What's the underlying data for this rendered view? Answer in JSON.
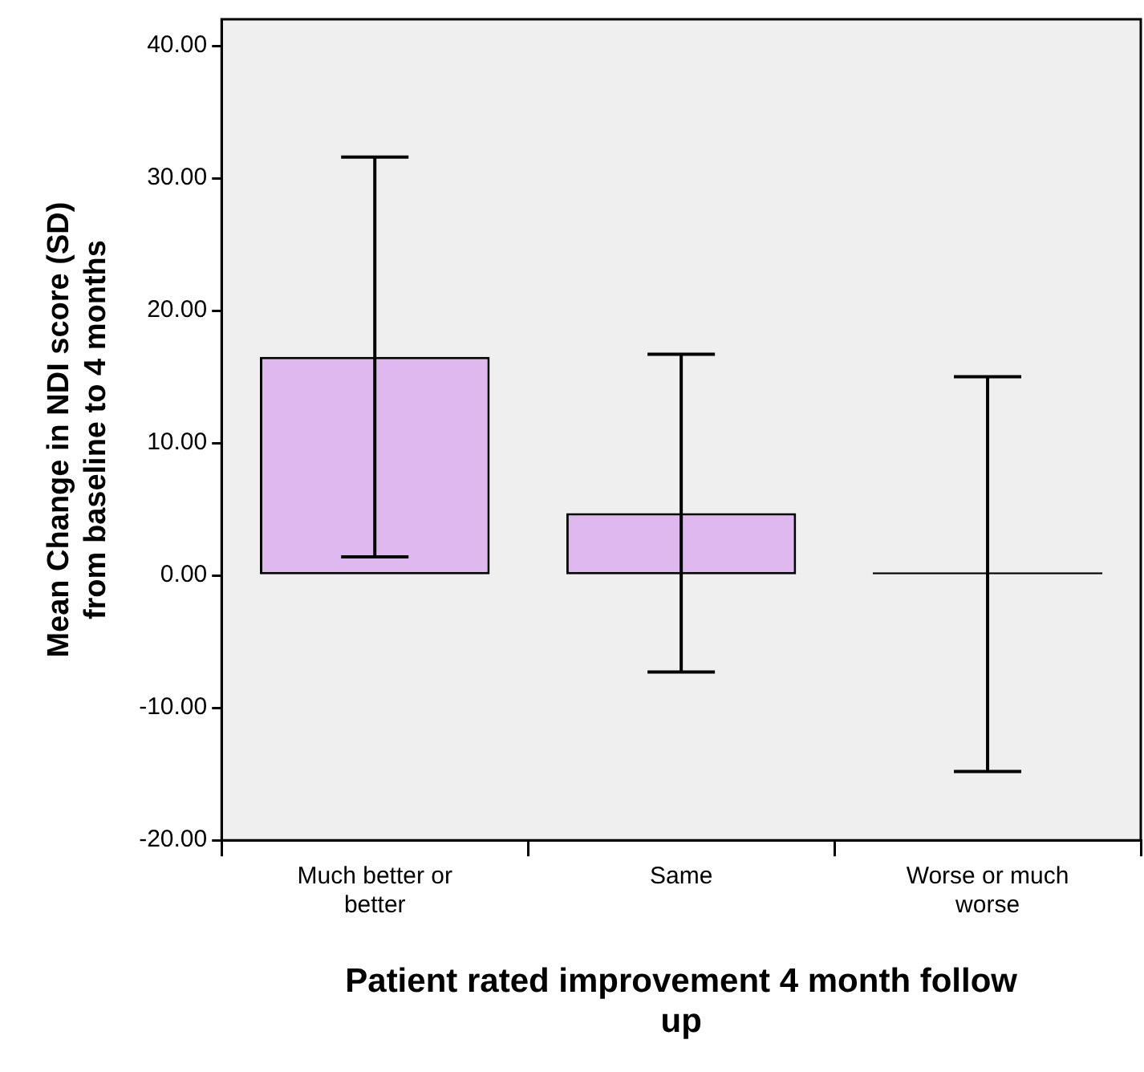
{
  "chart_data": {
    "type": "bar",
    "xlabel": "Patient rated improvement 4 month follow up",
    "ylabel": "Mean Change in NDI score (SD) from baseline to 4 months",
    "categories": [
      "Much better or better",
      "Same",
      "Worse or much worse"
    ],
    "values": [
      16.5,
      4.7,
      0.1
    ],
    "errors": [
      15.1,
      12.0,
      14.9
    ],
    "colors": [
      "#dfb8f0",
      "#dfb8f0",
      "#000000"
    ],
    "ylim": [
      -20,
      42
    ],
    "yticks": [
      {
        "value": -20,
        "label": "-20.00"
      },
      {
        "value": -10,
        "label": "-10.00"
      },
      {
        "value": 0,
        "label": "0.00"
      },
      {
        "value": 10,
        "label": "10.00"
      },
      {
        "value": 20,
        "label": "20.00"
      },
      {
        "value": 30,
        "label": "30.00"
      },
      {
        "value": 40,
        "label": "40.00"
      }
    ]
  }
}
